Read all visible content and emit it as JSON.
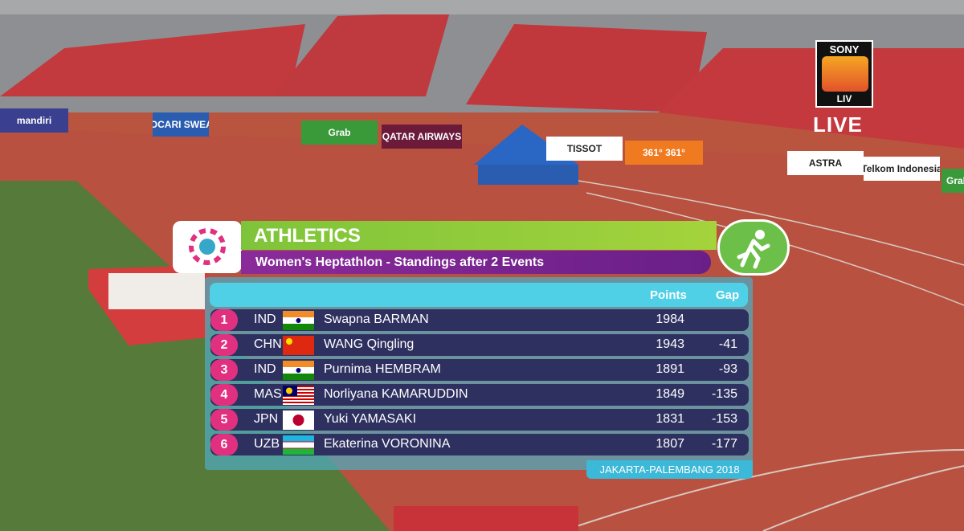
{
  "broadcaster": {
    "brand": "SONY",
    "sub": "LIV",
    "status": "LIVE"
  },
  "sponsors": [
    "mandiri",
    "POCARI SWEAT",
    "Grab",
    "QATAR AIRWAYS",
    "TISSOT",
    "361° 361°",
    "ASTRA",
    "Telkom Indonesia",
    "Grab"
  ],
  "graphic": {
    "sport": "ATHLETICS",
    "subtitle": "Women's Heptathlon - Standings after 2 Events",
    "columns": [
      "Points",
      "Gap"
    ],
    "rows": [
      {
        "rank": 1,
        "country": "IND",
        "name": "Swapna BARMAN",
        "points": 1984,
        "gap": null
      },
      {
        "rank": 2,
        "country": "CHN",
        "name": "WANG Qingling",
        "points": 1943,
        "gap": -41
      },
      {
        "rank": 3,
        "country": "IND",
        "name": "Purnima HEMBRAM",
        "points": 1891,
        "gap": -93
      },
      {
        "rank": 4,
        "country": "MAS",
        "name": "Norliyana KAMARUDDIN",
        "points": 1849,
        "gap": -135
      },
      {
        "rank": 5,
        "country": "JPN",
        "name": "Yuki YAMASAKI",
        "points": 1831,
        "gap": -153
      },
      {
        "rank": 6,
        "country": "UZB",
        "name": "Ekaterina VORONINA",
        "points": 1807,
        "gap": -177
      }
    ],
    "footer": "JAKARTA-PALEMBANG 2018"
  }
}
